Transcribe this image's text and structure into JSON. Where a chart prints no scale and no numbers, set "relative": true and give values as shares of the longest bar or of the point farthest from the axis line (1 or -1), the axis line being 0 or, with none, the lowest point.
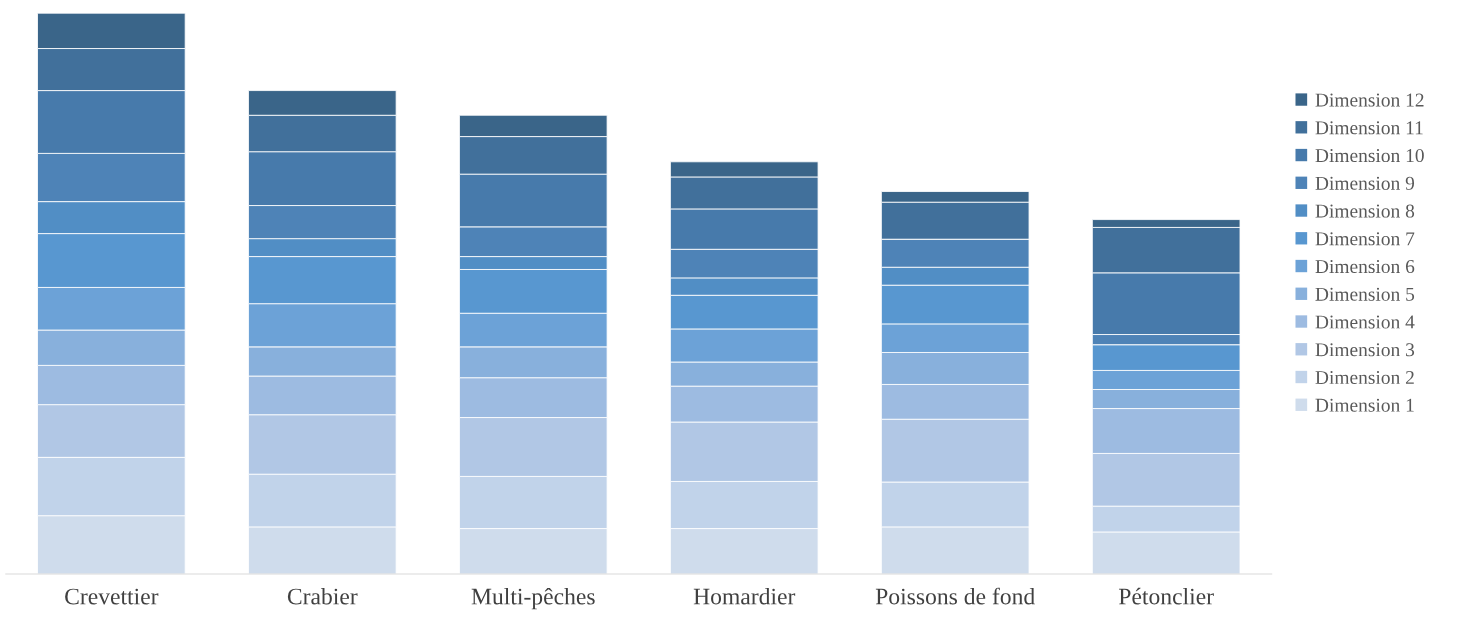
{
  "chart_data": {
    "type": "bar",
    "stacked": true,
    "relative": true,
    "legend": "right",
    "grid": false,
    "categories": [
      "Crevettier",
      "Crabier",
      "Multi-pêches",
      "Homardier",
      "Poissons de fond",
      "Pétonclier"
    ],
    "series": [
      {
        "name": "Dimension 1",
        "color": "#cfdcec",
        "values": [
          0.104,
          0.084,
          0.081,
          0.081,
          0.084,
          0.075
        ]
      },
      {
        "name": "Dimension 2",
        "color": "#c1d3ea",
        "values": [
          0.104,
          0.094,
          0.093,
          0.084,
          0.08,
          0.046
        ]
      },
      {
        "name": "Dimension 3",
        "color": "#b1c7e5",
        "values": [
          0.094,
          0.106,
          0.105,
          0.106,
          0.112,
          0.094
        ]
      },
      {
        "name": "Dimension 4",
        "color": "#9dbbe1",
        "values": [
          0.07,
          0.069,
          0.071,
          0.064,
          0.062,
          0.08
        ]
      },
      {
        "name": "Dimension 5",
        "color": "#88b0dc",
        "values": [
          0.063,
          0.052,
          0.055,
          0.043,
          0.057,
          0.034
        ]
      },
      {
        "name": "Dimension 6",
        "color": "#6ca2d7",
        "values": [
          0.076,
          0.077,
          0.06,
          0.059,
          0.051,
          0.034
        ]
      },
      {
        "name": "Dimension 7",
        "color": "#5897d0",
        "values": [
          0.096,
          0.084,
          0.078,
          0.06,
          0.069,
          0.046
        ]
      },
      {
        "name": "Dimension 8",
        "color": "#518ec5",
        "values": [
          0.057,
          0.032,
          0.023,
          0.031,
          0.032,
          0.0
        ]
      },
      {
        "name": "Dimension 9",
        "color": "#4e83b7",
        "values": [
          0.086,
          0.059,
          0.053,
          0.051,
          0.05,
          0.018
        ]
      },
      {
        "name": "Dimension 10",
        "color": "#477aab",
        "values": [
          0.112,
          0.096,
          0.094,
          0.072,
          0.0,
          0.11
        ]
      },
      {
        "name": "Dimension 11",
        "color": "#41709b",
        "values": [
          0.075,
          0.065,
          0.067,
          0.057,
          0.066,
          0.081
        ]
      },
      {
        "name": "Dimension 12",
        "color": "#3a6589",
        "values": [
          0.063,
          0.044,
          0.038,
          0.027,
          0.019,
          0.014
        ]
      }
    ]
  }
}
